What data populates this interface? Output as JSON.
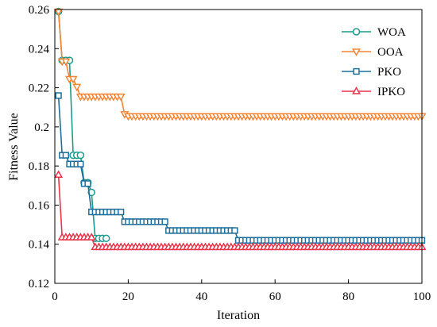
{
  "chart_data": {
    "type": "line",
    "xlabel": "Iteration",
    "ylabel": "Fitness Value",
    "xlim": [
      0,
      100
    ],
    "ylim": [
      0.12,
      0.26
    ],
    "xticks": [
      0,
      20,
      40,
      60,
      80,
      100
    ],
    "xtick_labels": [
      "0",
      "20",
      "40",
      "60",
      "80",
      "100"
    ],
    "yticks": [
      0.12,
      0.14,
      0.16,
      0.18,
      0.2,
      0.22,
      0.24,
      0.26
    ],
    "ytick_labels": [
      "0.12",
      "0.14",
      "0.16",
      "0.18",
      "0.2",
      "0.22",
      "0.24",
      "0.26"
    ],
    "grid": false,
    "legend_position": "top-right",
    "series": [
      {
        "name": "WOA",
        "color": "#1a9c8c",
        "marker": "circle",
        "x": [
          1,
          2,
          3,
          4,
          5,
          6,
          7,
          8,
          9,
          10,
          11,
          12,
          13,
          14
        ],
        "y": [
          0.259,
          0.234,
          0.234,
          0.234,
          0.1855,
          0.1855,
          0.1855,
          0.1715,
          0.1715,
          0.1665,
          0.143,
          0.143,
          0.143,
          0.143
        ]
      },
      {
        "name": "OOA",
        "color": "#f58535",
        "marker": "triangle-down",
        "x": [
          1,
          2,
          3,
          4,
          5,
          6,
          7,
          8,
          9,
          10,
          11,
          12,
          13,
          14,
          15,
          16,
          17,
          18,
          19,
          20,
          21,
          22,
          23,
          24,
          25,
          26,
          27,
          28,
          29,
          30,
          31,
          32,
          33,
          34,
          35,
          36,
          37,
          38,
          39,
          40,
          41,
          42,
          43,
          44,
          45,
          46,
          47,
          48,
          49,
          50,
          51,
          52,
          53,
          54,
          55,
          56,
          57,
          58,
          59,
          60,
          61,
          62,
          63,
          64,
          65,
          66,
          67,
          68,
          69,
          70,
          71,
          72,
          73,
          74,
          75,
          76,
          77,
          78,
          79,
          80,
          81,
          82,
          83,
          84,
          85,
          86,
          87,
          88,
          89,
          90,
          91,
          92,
          93,
          94,
          95,
          96,
          97,
          98,
          99,
          100
        ],
        "y": [
          0.259,
          0.2335,
          0.2335,
          0.2245,
          0.2245,
          0.2205,
          0.2155,
          0.2155,
          0.2155,
          0.2155,
          0.2155,
          0.2155,
          0.2155,
          0.2155,
          0.2155,
          0.2155,
          0.2155,
          0.2155,
          0.2065,
          0.2055,
          0.2055,
          0.2055,
          0.2055,
          0.2055,
          0.2055,
          0.2055,
          0.2055,
          0.2055,
          0.2055,
          0.2055,
          0.2055,
          0.2055,
          0.2055,
          0.2055,
          0.2055,
          0.2055,
          0.2055,
          0.2055,
          0.2055,
          0.2055,
          0.2055,
          0.2055,
          0.2055,
          0.2055,
          0.2055,
          0.2055,
          0.2055,
          0.2055,
          0.2055,
          0.2055,
          0.2055,
          0.2055,
          0.2055,
          0.2055,
          0.2055,
          0.2055,
          0.2055,
          0.2055,
          0.2055,
          0.2055,
          0.2055,
          0.2055,
          0.2055,
          0.2055,
          0.2055,
          0.2055,
          0.2055,
          0.2055,
          0.2055,
          0.2055,
          0.2055,
          0.2055,
          0.2055,
          0.2055,
          0.2055,
          0.2055,
          0.2055,
          0.2055,
          0.2055,
          0.2055,
          0.2055,
          0.2055,
          0.2055,
          0.2055,
          0.2055,
          0.2055,
          0.2055,
          0.2055,
          0.2055,
          0.2055,
          0.2055,
          0.2055,
          0.2055,
          0.2055,
          0.2055,
          0.2055,
          0.2055,
          0.2055,
          0.2055,
          0.2055
        ]
      },
      {
        "name": "PKO",
        "color": "#1f6f9a",
        "marker": "square",
        "x": [
          1,
          2,
          3,
          4,
          5,
          6,
          7,
          8,
          9,
          10,
          11,
          12,
          13,
          14,
          15,
          16,
          17,
          18,
          19,
          20,
          21,
          22,
          23,
          24,
          25,
          26,
          27,
          28,
          29,
          30,
          31,
          32,
          33,
          34,
          35,
          36,
          37,
          38,
          39,
          40,
          41,
          42,
          43,
          44,
          45,
          46,
          47,
          48,
          49,
          50,
          51,
          52,
          53,
          54,
          55,
          56,
          57,
          58,
          59,
          60,
          61,
          62,
          63,
          64,
          65,
          66,
          67,
          68,
          69,
          70,
          71,
          72,
          73,
          74,
          75,
          76,
          77,
          78,
          79,
          80,
          81,
          82,
          83,
          84,
          85,
          86,
          87,
          88,
          89,
          90,
          91,
          92,
          93,
          94,
          95,
          96,
          97,
          98,
          99,
          100
        ],
        "y": [
          0.216,
          0.1855,
          0.1855,
          0.181,
          0.181,
          0.181,
          0.181,
          0.171,
          0.171,
          0.1565,
          0.1565,
          0.1565,
          0.1565,
          0.1565,
          0.1565,
          0.1565,
          0.1565,
          0.1565,
          0.1515,
          0.1515,
          0.1515,
          0.1515,
          0.1515,
          0.1515,
          0.1515,
          0.1515,
          0.1515,
          0.1515,
          0.1515,
          0.1515,
          0.147,
          0.147,
          0.147,
          0.147,
          0.147,
          0.147,
          0.147,
          0.147,
          0.147,
          0.147,
          0.147,
          0.147,
          0.147,
          0.147,
          0.147,
          0.147,
          0.147,
          0.147,
          0.147,
          0.142,
          0.142,
          0.142,
          0.142,
          0.142,
          0.142,
          0.142,
          0.142,
          0.142,
          0.142,
          0.142,
          0.142,
          0.142,
          0.142,
          0.142,
          0.142,
          0.142,
          0.142,
          0.142,
          0.142,
          0.142,
          0.142,
          0.142,
          0.142,
          0.142,
          0.142,
          0.142,
          0.142,
          0.142,
          0.142,
          0.142,
          0.142,
          0.142,
          0.142,
          0.142,
          0.142,
          0.142,
          0.142,
          0.142,
          0.142,
          0.142,
          0.142,
          0.142,
          0.142,
          0.142,
          0.142,
          0.142,
          0.142,
          0.142,
          0.142,
          0.142
        ]
      },
      {
        "name": "IPKO",
        "color": "#e8334a",
        "marker": "triangle-up",
        "x": [
          1,
          2,
          3,
          4,
          5,
          6,
          7,
          8,
          9,
          10,
          11,
          12,
          13,
          14,
          15,
          16,
          17,
          18,
          19,
          20,
          21,
          22,
          23,
          24,
          25,
          26,
          27,
          28,
          29,
          30,
          31,
          32,
          33,
          34,
          35,
          36,
          37,
          38,
          39,
          40,
          41,
          42,
          43,
          44,
          45,
          46,
          47,
          48,
          49,
          50,
          51,
          52,
          53,
          54,
          55,
          56,
          57,
          58,
          59,
          60,
          61,
          62,
          63,
          64,
          65,
          66,
          67,
          68,
          69,
          70,
          71,
          72,
          73,
          74,
          75,
          76,
          77,
          78,
          79,
          80,
          81,
          82,
          83,
          84,
          85,
          86,
          87,
          88,
          89,
          90,
          91,
          92,
          93,
          94,
          95,
          96,
          97,
          98,
          99,
          100
        ],
        "y": [
          0.1755,
          0.1435,
          0.1435,
          0.1435,
          0.1435,
          0.1435,
          0.1435,
          0.1435,
          0.1435,
          0.1435,
          0.1385,
          0.1385,
          0.1385,
          0.1385,
          0.1385,
          0.1385,
          0.1385,
          0.1385,
          0.1385,
          0.1385,
          0.1385,
          0.1385,
          0.1385,
          0.1385,
          0.1385,
          0.1385,
          0.1385,
          0.1385,
          0.1385,
          0.1385,
          0.1385,
          0.1385,
          0.1385,
          0.1385,
          0.1385,
          0.1385,
          0.1385,
          0.1385,
          0.1385,
          0.1385,
          0.1385,
          0.1385,
          0.1385,
          0.1385,
          0.1385,
          0.1385,
          0.1385,
          0.1385,
          0.1385,
          0.1385,
          0.1385,
          0.1385,
          0.1385,
          0.1385,
          0.1385,
          0.1385,
          0.1385,
          0.1385,
          0.1385,
          0.1385,
          0.1385,
          0.1385,
          0.1385,
          0.1385,
          0.1385,
          0.1385,
          0.1385,
          0.1385,
          0.1385,
          0.1385,
          0.1385,
          0.1385,
          0.1385,
          0.1385,
          0.1385,
          0.1385,
          0.1385,
          0.1385,
          0.1385,
          0.1385,
          0.1385,
          0.1385,
          0.1385,
          0.1385,
          0.1385,
          0.1385,
          0.1385,
          0.1385,
          0.1385,
          0.1385,
          0.1385,
          0.1385,
          0.1385,
          0.1385,
          0.1385,
          0.1385,
          0.1385,
          0.1385,
          0.1385,
          0.1385
        ]
      }
    ]
  }
}
